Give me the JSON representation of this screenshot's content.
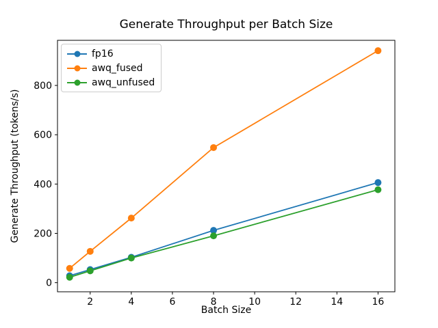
{
  "chart_data": {
    "type": "line",
    "title": "Generate Throughput per Batch Size",
    "xlabel": "Batch Size",
    "ylabel": "Generate Throughput (tokens/s)",
    "x": [
      1,
      2,
      4,
      8,
      16
    ],
    "series": [
      {
        "name": "fp16",
        "color": "#1f77b4",
        "values": [
          28,
          53,
          103,
          212,
          406
        ]
      },
      {
        "name": "awq_fused",
        "color": "#ff7f0e",
        "values": [
          58,
          127,
          262,
          548,
          941
        ]
      },
      {
        "name": "awq_unfused",
        "color": "#2ca02c",
        "values": [
          22,
          48,
          100,
          190,
          377
        ]
      }
    ],
    "xticks": [
      2,
      4,
      6,
      8,
      10,
      12,
      14,
      16
    ],
    "yticks": [
      0,
      200,
      400,
      600,
      800
    ],
    "xlim": [
      0.41,
      16.82
    ],
    "ylim": [
      -37,
      983
    ],
    "grid": false,
    "legend_position": "upper-left",
    "marker": "circle",
    "marker_radius": 5,
    "line_width": 1.8,
    "axis_color": "#000000"
  }
}
